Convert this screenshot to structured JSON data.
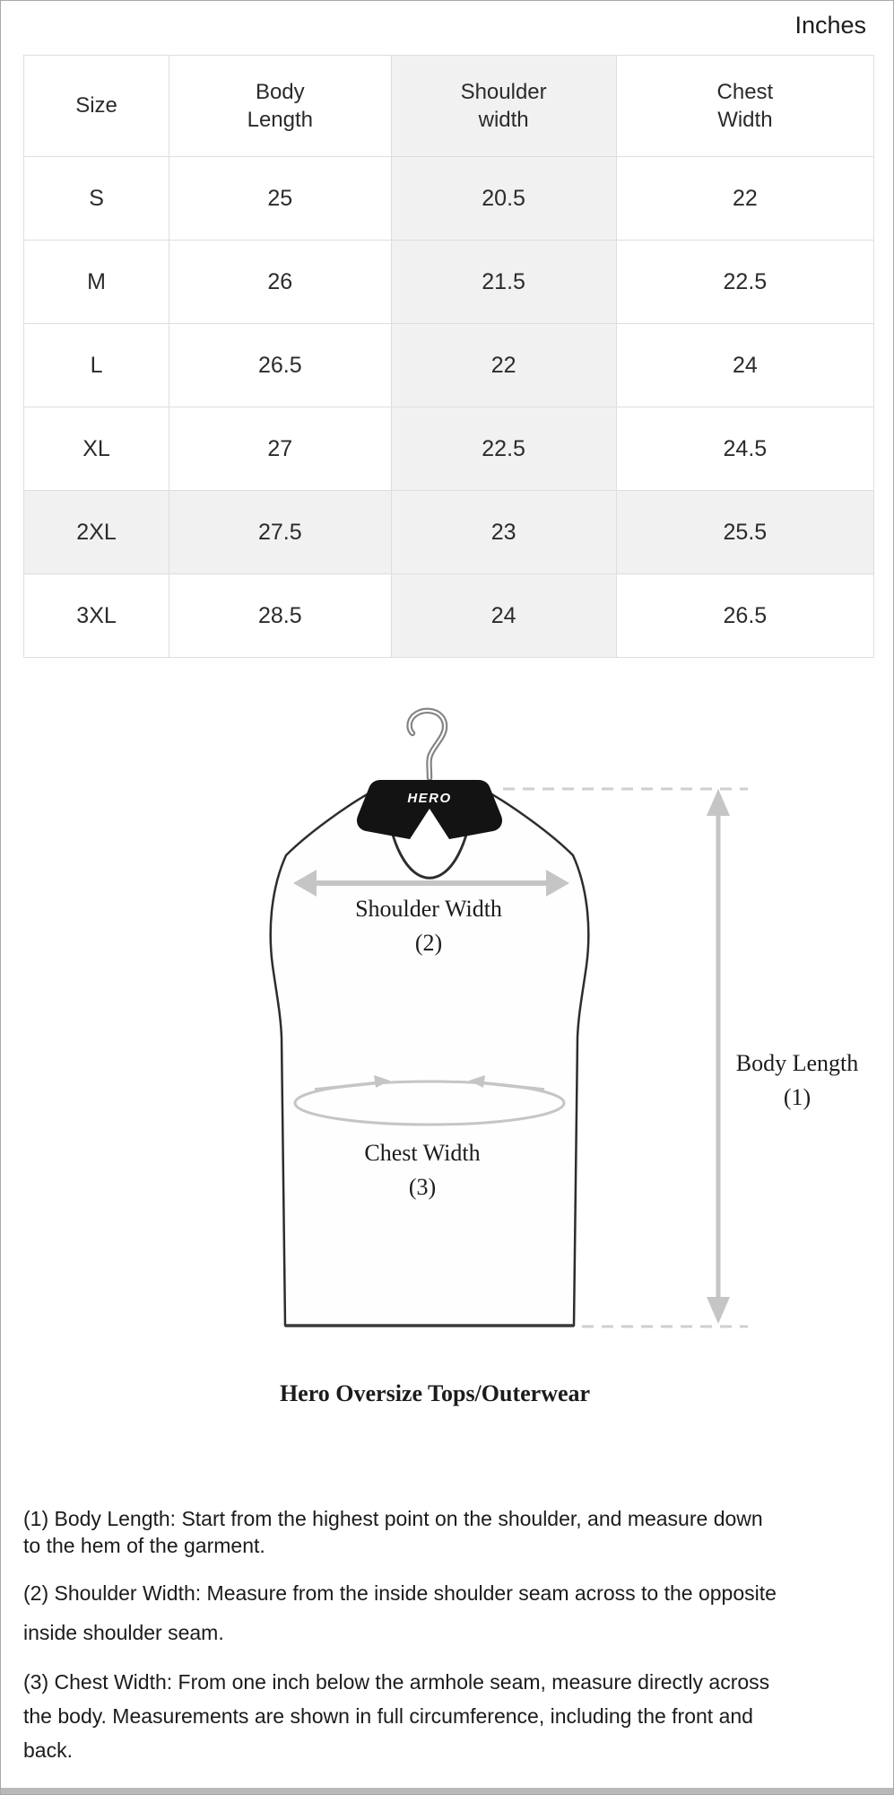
{
  "unit_label": "Inches",
  "table": {
    "columns": [
      "Size",
      "Body\nLength",
      "Shoulder\nwidth",
      "Chest\nWidth"
    ],
    "shaded_column_index": 2,
    "shaded_row_index": 4,
    "rows": [
      [
        "S",
        "25",
        "20.5",
        "22"
      ],
      [
        "M",
        "26",
        "21.5",
        "22.5"
      ],
      [
        "L",
        "26.5",
        "22",
        "24"
      ],
      [
        "XL",
        "27",
        "22.5",
        "24.5"
      ],
      [
        "2XL",
        "27.5",
        "23",
        "25.5"
      ],
      [
        "3XL",
        "28.5",
        "24",
        "26.5"
      ]
    ]
  },
  "diagram": {
    "hanger_logo": "HERO",
    "shoulder_label": "Shoulder Width",
    "shoulder_ref": "(2)",
    "chest_label": "Chest Width",
    "chest_ref": "(3)",
    "body_label": "Body Length",
    "body_ref": "(1)",
    "caption": "Hero Oversize Tops/Outerwear"
  },
  "notes": [
    "(1) Body Length: Start from the highest point on the shoulder, and measure down\nto the hem of the garment.",
    "(2) Shoulder Width: Measure from the inside shoulder seam across to the opposite\ninside shoulder seam.",
    "(3) Chest Width: From one inch below the armhole seam, measure directly across\nthe body. Measurements are shown in full circumference, including the front and\nback."
  ],
  "colors": {
    "shaded_cell": "#f1f1f1",
    "table_border": "#dedede",
    "arrow_gray": "#c5c5c5",
    "hanger_black": "#131313",
    "garment_outline": "#2d2d2d",
    "bottom_bar": "#b9b9b9",
    "text": "#1c1c1c"
  }
}
